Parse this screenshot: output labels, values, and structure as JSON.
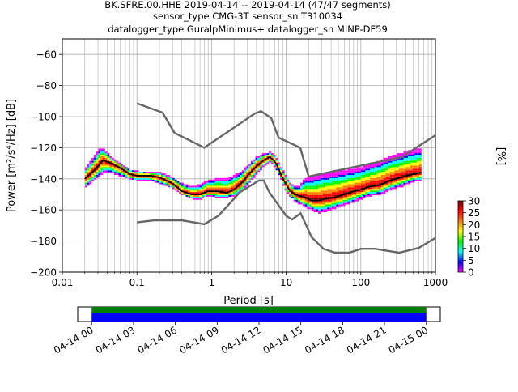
{
  "header": {
    "line1": "BK.SFRE.00.HHE   2019-04-14 -- 2019-04-14  (47/47 segments)",
    "line2": "sensor_type CMG-3T sensor_sn T310034",
    "line3": "datalogger_type GuralpMinimus+ datalogger_sn MINP-DF59"
  },
  "colors": {
    "noise_model": "#666666",
    "mean_curve": "#000000",
    "coverage_top": "#008000",
    "coverage_bottom": "#0000ff",
    "colormap": [
      "#ff00ff",
      "#0000ff",
      "#00ffff",
      "#00ff00",
      "#ffff00",
      "#ff7f00",
      "#ff0000",
      "#800000"
    ]
  },
  "chart_data": [
    {
      "type": "heatmap",
      "name": "probabilistic-psd",
      "xlabel": "Period [s]",
      "ylabel": "Power [m²/s⁴/Hz] [dB]",
      "x_scale": "log",
      "xlim": [
        0.01,
        1000
      ],
      "ylim": [
        -200,
        -50
      ],
      "x_ticks": [
        {
          "value": 0.01,
          "label": "0.01"
        },
        {
          "value": 0.1,
          "label": "0.1"
        },
        {
          "value": 1,
          "label": "1"
        },
        {
          "value": 10,
          "label": "10"
        },
        {
          "value": 100,
          "label": "100"
        },
        {
          "value": 1000,
          "label": "1000"
        }
      ],
      "y_ticks": [
        -60,
        -80,
        -100,
        -120,
        -140,
        -160,
        -180,
        -200
      ],
      "grid": true,
      "mean_curve": {
        "x": [
          0.02,
          0.025,
          0.03,
          0.035,
          0.045,
          0.06,
          0.08,
          0.1,
          0.15,
          0.2,
          0.3,
          0.4,
          0.55,
          0.7,
          0.9,
          1.2,
          1.6,
          2.0,
          2.6,
          3.3,
          4.0,
          5.0,
          6.0,
          6.8,
          7.5,
          8.5,
          9.5,
          11,
          13,
          15,
          18,
          22,
          27,
          33,
          45,
          60,
          80,
          100,
          130,
          180,
          250,
          350,
          500,
          650
        ],
        "y": [
          -140,
          -136,
          -132,
          -128,
          -130,
          -133,
          -137,
          -138,
          -138,
          -139,
          -143,
          -148,
          -150,
          -150,
          -148,
          -148,
          -149,
          -147,
          -142,
          -136,
          -132,
          -128,
          -126,
          -128,
          -131,
          -137,
          -142,
          -147,
          -150,
          -151,
          -152,
          -154,
          -154,
          -153,
          -152,
          -150,
          -148,
          -147,
          -145,
          -144,
          -141,
          -139,
          -137,
          -136
        ]
      },
      "pdf_spread": {
        "x": [
          0.02,
          0.025,
          0.03,
          0.035,
          0.045,
          0.06,
          0.08,
          0.1,
          0.15,
          0.2,
          0.3,
          0.4,
          0.55,
          0.7,
          0.9,
          1.2,
          1.6,
          2.0,
          2.6,
          3.3,
          4.0,
          5.0,
          6.0,
          6.8,
          7.5,
          8.5,
          9.5,
          11,
          13,
          15,
          18,
          22,
          27,
          33,
          45,
          60,
          80,
          100,
          130,
          180,
          250,
          350,
          500,
          650
        ],
        "upper": [
          -134,
          -128,
          -122,
          -120,
          -126,
          -130,
          -134,
          -135,
          -136,
          -136,
          -139,
          -143,
          -145,
          -144,
          -141,
          -140,
          -140,
          -138,
          -135,
          -130,
          -126,
          -124,
          -123,
          -124,
          -127,
          -132,
          -136,
          -142,
          -145,
          -145,
          -140,
          -139,
          -138,
          -137,
          -136,
          -135,
          -134,
          -133,
          -131,
          -129,
          -126,
          -124,
          -122,
          -121
        ],
        "lower": [
          -146,
          -142,
          -139,
          -136,
          -136,
          -138,
          -140,
          -141,
          -141,
          -143,
          -146,
          -150,
          -153,
          -153,
          -151,
          -152,
          -152,
          -151,
          -148,
          -142,
          -137,
          -132,
          -129,
          -131,
          -135,
          -140,
          -146,
          -151,
          -154,
          -156,
          -158,
          -160,
          -162,
          -161,
          -159,
          -157,
          -155,
          -153,
          -151,
          -150,
          -147,
          -145,
          -142,
          -141
        ]
      },
      "noise_model_high": {
        "x": [
          0.1,
          0.22,
          0.32,
          0.8,
          3.8,
          4.6,
          6.3,
          7.9,
          15.4,
          20,
          354.8,
          1000
        ],
        "y": [
          -91.5,
          -97.4,
          -110.5,
          -120,
          -98,
          -96.5,
          -101,
          -113.5,
          -120,
          -138.5,
          -126,
          -112
        ]
      },
      "noise_model_low": {
        "x": [
          0.1,
          0.17,
          0.4,
          0.8,
          1.24,
          2.4,
          4.3,
          5,
          6,
          10,
          12,
          15.6,
          21.9,
          31.6,
          45,
          70,
          101,
          154,
          328,
          600,
          1000
        ],
        "y": [
          -168,
          -166.7,
          -166.7,
          -169.2,
          -163.7,
          -148.6,
          -141.1,
          -141.1,
          -149,
          -163.8,
          -166.2,
          -162.1,
          -177.5,
          -185,
          -187.5,
          -187.5,
          -185,
          -185,
          -187.5,
          -184.4,
          -178
        ]
      }
    },
    {
      "type": "heatmap",
      "name": "colorbar",
      "label": "[%]",
      "range": [
        0,
        30
      ],
      "ticks": [
        0,
        5,
        10,
        15,
        20,
        25,
        30
      ]
    },
    {
      "type": "bar",
      "name": "coverage",
      "xlim_hours": [
        -1,
        25
      ],
      "covered_hours": [
        0,
        24
      ],
      "tick_labels": [
        "04-14 00",
        "04-14 03",
        "04-14 06",
        "04-14 09",
        "04-14 12",
        "04-14 15",
        "04-14 18",
        "04-14 21",
        "04-15 00"
      ],
      "tick_hours": [
        0,
        3,
        6,
        9,
        12,
        15,
        18,
        21,
        24
      ]
    }
  ]
}
